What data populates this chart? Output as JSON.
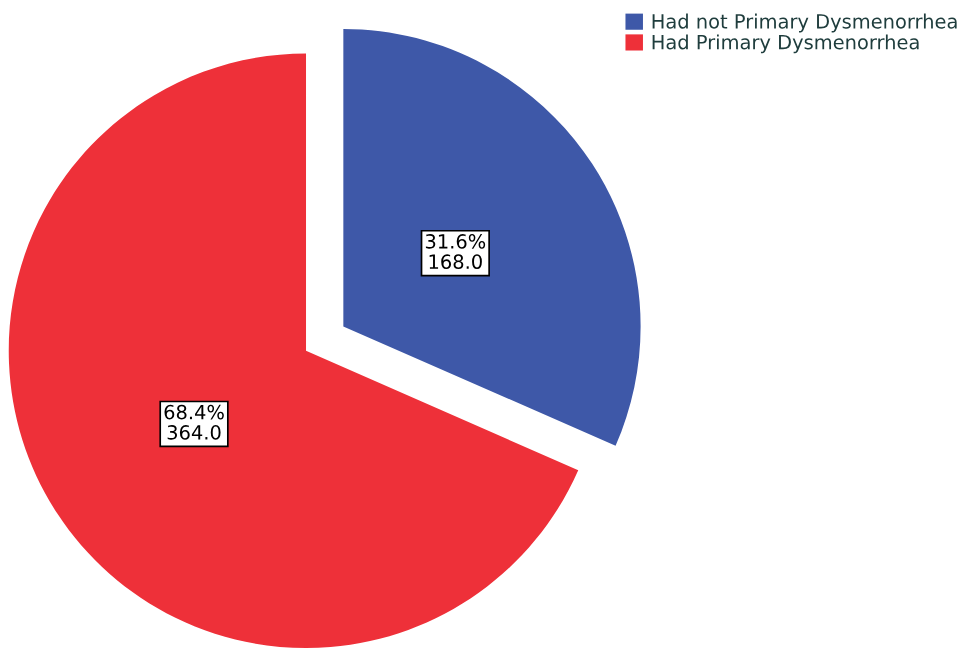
{
  "chart_data": {
    "type": "pie",
    "categories": [
      "Had not Primary Dysmenorrhea",
      "Had Primary Dysmenorrhea"
    ],
    "values": [
      168.0,
      364.0
    ],
    "colors": [
      "#3e58a8",
      "#ee3039"
    ],
    "value_labels": [
      "31.6%\n168.0",
      "68.4%\n364.0"
    ],
    "legend": "top right"
  }
}
